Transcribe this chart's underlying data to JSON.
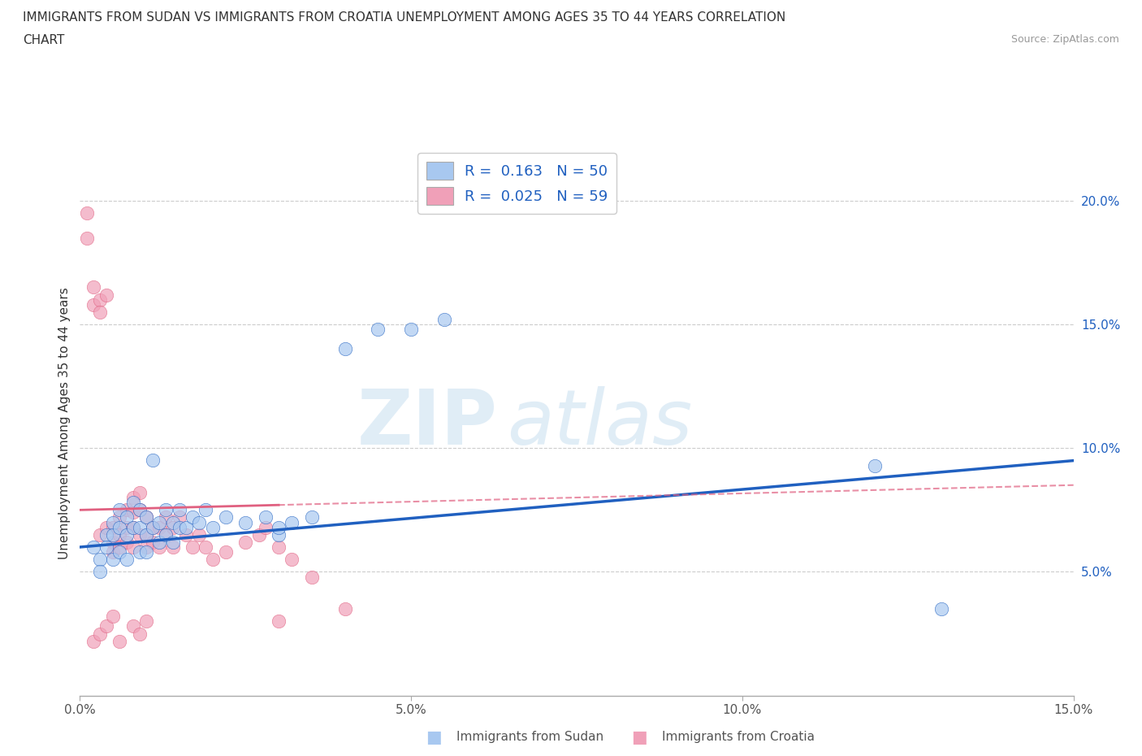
{
  "title_line1": "IMMIGRANTS FROM SUDAN VS IMMIGRANTS FROM CROATIA UNEMPLOYMENT AMONG AGES 35 TO 44 YEARS CORRELATION",
  "title_line2": "CHART",
  "source": "Source: ZipAtlas.com",
  "ylabel": "Unemployment Among Ages 35 to 44 years",
  "xlabel_sudan": "Immigrants from Sudan",
  "xlabel_croatia": "Immigrants from Croatia",
  "xlim": [
    0.0,
    0.15
  ],
  "ylim": [
    0.0,
    0.22
  ],
  "yticks": [
    0.0,
    0.05,
    0.1,
    0.15,
    0.2
  ],
  "ytick_labels": [
    "",
    "5.0%",
    "10.0%",
    "15.0%",
    "20.0%"
  ],
  "xticks": [
    0.0,
    0.05,
    0.1,
    0.15
  ],
  "xtick_labels": [
    "0.0%",
    "5.0%",
    "10.0%",
    "15.0%"
  ],
  "color_sudan": "#A8C8F0",
  "color_croatia": "#F0A0B8",
  "line_color_sudan": "#2060C0",
  "line_color_croatia": "#E06080",
  "legend_R_sudan": "R =  0.163   N = 50",
  "legend_R_croatia": "R =  0.025   N = 59",
  "watermark_zip": "ZIP",
  "watermark_atlas": "atlas",
  "sudan_x": [
    0.002,
    0.003,
    0.003,
    0.004,
    0.004,
    0.005,
    0.005,
    0.005,
    0.006,
    0.006,
    0.006,
    0.007,
    0.007,
    0.007,
    0.008,
    0.008,
    0.009,
    0.009,
    0.009,
    0.01,
    0.01,
    0.01,
    0.011,
    0.011,
    0.012,
    0.012,
    0.013,
    0.013,
    0.014,
    0.014,
    0.015,
    0.015,
    0.016,
    0.017,
    0.018,
    0.019,
    0.02,
    0.022,
    0.025,
    0.028,
    0.03,
    0.03,
    0.032,
    0.035,
    0.04,
    0.045,
    0.05,
    0.055,
    0.12,
    0.13
  ],
  "sudan_y": [
    0.06,
    0.055,
    0.05,
    0.065,
    0.06,
    0.07,
    0.065,
    0.055,
    0.075,
    0.068,
    0.058,
    0.072,
    0.065,
    0.055,
    0.078,
    0.068,
    0.075,
    0.068,
    0.058,
    0.072,
    0.065,
    0.058,
    0.095,
    0.068,
    0.07,
    0.062,
    0.075,
    0.065,
    0.07,
    0.062,
    0.075,
    0.068,
    0.068,
    0.072,
    0.07,
    0.075,
    0.068,
    0.072,
    0.07,
    0.072,
    0.065,
    0.068,
    0.07,
    0.072,
    0.14,
    0.148,
    0.148,
    0.152,
    0.093,
    0.035
  ],
  "croatia_x": [
    0.001,
    0.001,
    0.002,
    0.002,
    0.003,
    0.003,
    0.003,
    0.004,
    0.004,
    0.005,
    0.005,
    0.005,
    0.006,
    0.006,
    0.006,
    0.007,
    0.007,
    0.007,
    0.008,
    0.008,
    0.008,
    0.008,
    0.009,
    0.009,
    0.009,
    0.01,
    0.01,
    0.01,
    0.011,
    0.011,
    0.012,
    0.012,
    0.013,
    0.013,
    0.014,
    0.014,
    0.015,
    0.016,
    0.017,
    0.018,
    0.019,
    0.02,
    0.022,
    0.025,
    0.027,
    0.028,
    0.03,
    0.032,
    0.035,
    0.04,
    0.002,
    0.003,
    0.004,
    0.005,
    0.006,
    0.008,
    0.009,
    0.01,
    0.03
  ],
  "croatia_y": [
    0.195,
    0.185,
    0.165,
    0.158,
    0.16,
    0.155,
    0.065,
    0.068,
    0.162,
    0.068,
    0.062,
    0.058,
    0.072,
    0.065,
    0.06,
    0.075,
    0.068,
    0.062,
    0.08,
    0.074,
    0.068,
    0.06,
    0.082,
    0.075,
    0.065,
    0.072,
    0.065,
    0.06,
    0.068,
    0.062,
    0.068,
    0.06,
    0.072,
    0.065,
    0.068,
    0.06,
    0.072,
    0.065,
    0.06,
    0.065,
    0.06,
    0.055,
    0.058,
    0.062,
    0.065,
    0.068,
    0.06,
    0.055,
    0.048,
    0.035,
    0.022,
    0.025,
    0.028,
    0.032,
    0.022,
    0.028,
    0.025,
    0.03,
    0.03
  ]
}
